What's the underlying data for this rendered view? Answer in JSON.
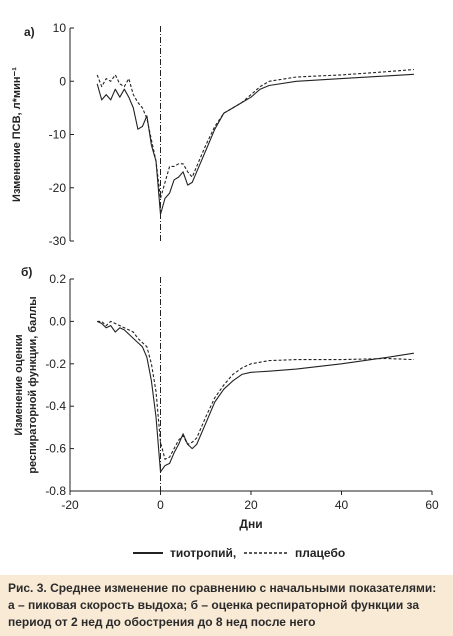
{
  "caption": "Рис. 3. Среднее изменение по сравнению с начальными показателями: а – пиковая скорость выдоха; б – оценка респираторной функции за период от 2 нед до обострения до 8 нед после него",
  "legend": {
    "series1": "тиотропий,",
    "series2": "плацебо"
  },
  "chart_data": [
    {
      "type": "line",
      "panel_label": "а)",
      "ylabel": "Изменение ПСВ, л*мин⁻¹",
      "xlim": [
        -20,
        60
      ],
      "ylim": [
        -30,
        10
      ],
      "yticks": [
        10,
        0,
        -10,
        -20,
        -30
      ],
      "dashed_vertical_at_x": 0,
      "grid": false,
      "series": [
        {
          "name": "тиотропий,",
          "style": "solid",
          "x": [
            -14,
            -13,
            -12,
            -11,
            -10,
            -9,
            -8,
            -7,
            -6,
            -5,
            -4,
            -3,
            -2,
            -1,
            0,
            1,
            2,
            3,
            4,
            5,
            6,
            7,
            8,
            10,
            12,
            14,
            16,
            18,
            20,
            22,
            24,
            30,
            40,
            50,
            56
          ],
          "y": [
            -0.5,
            -3.5,
            -2.5,
            -3.5,
            -1.5,
            -3,
            -1.5,
            -3,
            -5,
            -9,
            -8.5,
            -6.5,
            -12,
            -15,
            -25,
            -22,
            -21,
            -18.5,
            -18,
            -17,
            -19.5,
            -19,
            -17,
            -13,
            -9,
            -6,
            -5,
            -4,
            -3,
            -1.5,
            -0.8,
            0,
            0.5,
            1,
            1.3
          ]
        },
        {
          "name": "плацебо",
          "style": "dashed",
          "x": [
            -14,
            -13,
            -12,
            -11,
            -10,
            -9,
            -8,
            -7,
            -6,
            -5,
            -4,
            -3,
            -2,
            -1,
            0,
            1,
            2,
            3,
            4,
            5,
            6,
            7,
            8,
            10,
            12,
            14,
            16,
            18,
            20,
            22,
            24,
            30,
            40,
            50,
            56
          ],
          "y": [
            1.2,
            -1,
            0.5,
            0,
            1.2,
            -0.5,
            -1,
            0.5,
            -2.5,
            -4,
            -5,
            -7,
            -11,
            -15,
            -22,
            -19,
            -16,
            -16,
            -15.5,
            -15.5,
            -17,
            -18,
            -16,
            -12,
            -8.5,
            -6,
            -5,
            -4,
            -2.5,
            -1,
            0,
            0.8,
            1.2,
            1.8,
            2.2
          ]
        }
      ]
    },
    {
      "type": "line",
      "panel_label": "б)",
      "ylabel": "Изменение оценки респираторной функции, баллы",
      "xlabel": "Дни",
      "xlim": [
        -20,
        60
      ],
      "ylim": [
        -0.8,
        0.2
      ],
      "yticks": [
        0.2,
        0.0,
        -0.2,
        -0.4,
        -0.6,
        -0.8
      ],
      "xticks": [
        -20,
        0,
        20,
        40,
        60
      ],
      "dashed_vertical_at_x": 0,
      "grid": false,
      "series": [
        {
          "name": "тиотропий,",
          "style": "solid",
          "x": [
            -14,
            -13,
            -12,
            -11,
            -10,
            -9,
            -8,
            -7,
            -6,
            -5,
            -4,
            -3,
            -2,
            -1,
            0,
            1,
            2,
            3,
            4,
            5,
            6,
            7,
            8,
            10,
            12,
            14,
            16,
            18,
            20,
            24,
            30,
            40,
            50,
            56
          ],
          "y": [
            0.0,
            -0.01,
            -0.03,
            -0.02,
            -0.05,
            -0.03,
            -0.04,
            -0.06,
            -0.08,
            -0.1,
            -0.12,
            -0.17,
            -0.28,
            -0.45,
            -0.71,
            -0.68,
            -0.67,
            -0.62,
            -0.58,
            -0.53,
            -0.58,
            -0.6,
            -0.58,
            -0.48,
            -0.38,
            -0.32,
            -0.28,
            -0.25,
            -0.24,
            -0.235,
            -0.225,
            -0.2,
            -0.17,
            -0.15
          ]
        },
        {
          "name": "плацебо",
          "style": "dashed",
          "x": [
            -14,
            -13,
            -12,
            -11,
            -10,
            -9,
            -8,
            -7,
            -6,
            -5,
            -4,
            -3,
            -2,
            -1,
            0,
            1,
            2,
            3,
            4,
            5,
            6,
            7,
            8,
            10,
            12,
            14,
            16,
            18,
            20,
            24,
            30,
            40,
            50,
            56
          ],
          "y": [
            0.0,
            0.0,
            -0.02,
            0.0,
            -0.01,
            -0.02,
            -0.03,
            -0.04,
            -0.05,
            -0.08,
            -0.1,
            -0.12,
            -0.2,
            -0.33,
            -0.57,
            -0.65,
            -0.64,
            -0.6,
            -0.56,
            -0.54,
            -0.58,
            -0.57,
            -0.55,
            -0.45,
            -0.36,
            -0.3,
            -0.25,
            -0.22,
            -0.2,
            -0.185,
            -0.18,
            -0.18,
            -0.175,
            -0.18
          ]
        }
      ]
    }
  ]
}
